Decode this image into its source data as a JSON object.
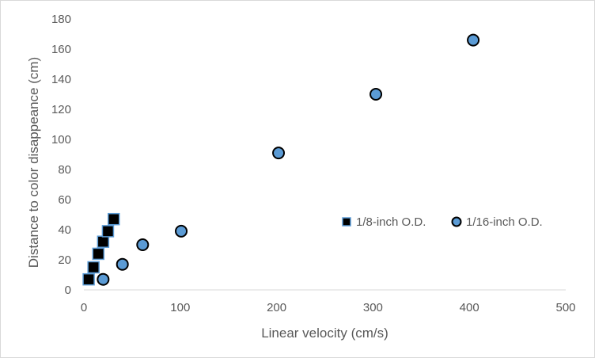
{
  "chart_data": {
    "type": "scatter",
    "title": "",
    "xlabel": "Linear velocity (cm/s)",
    "ylabel": "Distance to color disappeance (cm)",
    "xlim": [
      0,
      500
    ],
    "ylim": [
      0,
      180
    ],
    "xticks": [
      0,
      100,
      200,
      300,
      400,
      500
    ],
    "yticks": [
      0,
      20,
      40,
      60,
      80,
      100,
      120,
      140,
      160,
      180
    ],
    "grid": false,
    "legend_position": "center-right",
    "series": [
      {
        "name": "1/8-inch O.D.",
        "marker": "square",
        "color": "#000000",
        "edge_color": "#5b9bd5",
        "x": [
          5,
          10,
          15,
          20,
          25,
          31
        ],
        "y": [
          7,
          15,
          24,
          32,
          39,
          47
        ]
      },
      {
        "name": "1/16-inch O.D.",
        "marker": "circle",
        "color": "#5b9bd5",
        "edge_color": "#000000",
        "x": [
          20,
          40,
          61,
          101,
          202,
          303,
          404
        ],
        "y": [
          7,
          17,
          30,
          39,
          91,
          130,
          166
        ]
      }
    ]
  }
}
